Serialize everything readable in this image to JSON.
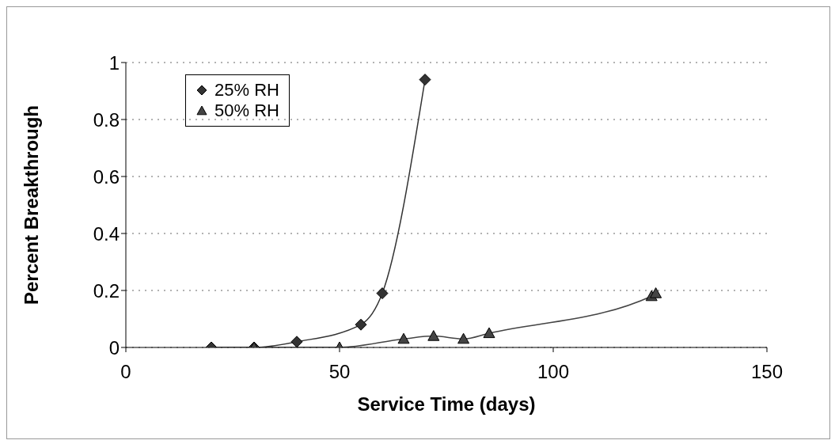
{
  "chart_data": {
    "type": "line",
    "xlabel": "Service Time (days)",
    "ylabel": "Percent Breakthrough",
    "xlim": [
      0,
      150
    ],
    "xticks": [
      0,
      50,
      100,
      150
    ],
    "ylim": [
      0,
      1
    ],
    "yticks": [
      0,
      0.2,
      0.4,
      0.6,
      0.8,
      1
    ],
    "grid": "y",
    "legend": "top left",
    "line_style": "solid",
    "series": [
      {
        "name": "25% RH",
        "color": "#333333",
        "marker": "diamond",
        "x": [
          20,
          30,
          40,
          55,
          60,
          70
        ],
        "values": [
          0,
          0,
          0.02,
          0.08,
          0.19,
          0.94
        ]
      },
      {
        "name": "50% RH",
        "color": "#444444",
        "marker": "triangle",
        "x": [
          30,
          50,
          65,
          72,
          79,
          85,
          123,
          124
        ],
        "values": [
          0,
          0,
          0.03,
          0.04,
          0.03,
          0.05,
          0.18,
          0.19
        ]
      }
    ]
  }
}
